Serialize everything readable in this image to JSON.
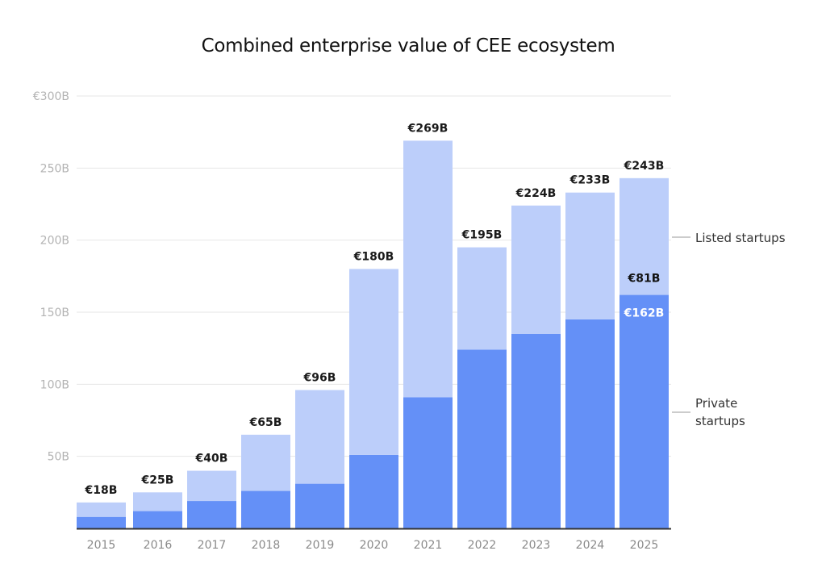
{
  "chart_data": {
    "type": "bar",
    "stacked": true,
    "title": "Combined enterprise value of CEE ecosystem",
    "xlabel": "",
    "ylabel": "",
    "ylim": [
      0,
      300
    ],
    "grid": true,
    "y_ticks": [
      {
        "value": 50,
        "label": "50B"
      },
      {
        "value": 100,
        "label": "100B"
      },
      {
        "value": 150,
        "label": "150B"
      },
      {
        "value": 200,
        "label": "200B"
      },
      {
        "value": 250,
        "label": "250B"
      },
      {
        "value": 300,
        "label": "€300B"
      }
    ],
    "categories": [
      "2015",
      "2016",
      "2017",
      "2018",
      "2019",
      "2020",
      "2021",
      "2022",
      "2023",
      "2024",
      "2025"
    ],
    "series": [
      {
        "name": "Private startups",
        "color": "#6490f7",
        "values": [
          8,
          12,
          19,
          26,
          31,
          51,
          91,
          124,
          135,
          145,
          162
        ]
      },
      {
        "name": "Listed startups",
        "color": "#bccefa",
        "values": [
          10,
          13,
          21,
          39,
          65,
          129,
          178,
          71,
          89,
          88,
          81
        ]
      }
    ],
    "totals": [
      18,
      25,
      40,
      65,
      96,
      180,
      269,
      195,
      224,
      233,
      243
    ],
    "total_labels": [
      "€18B",
      "€25B",
      "€40B",
      "€65B",
      "€96B",
      "€180B",
      "€269B",
      "€195B",
      "€224B",
      "€233B",
      "€243B"
    ],
    "segment_annotations": [
      {
        "category": "2025",
        "series": "Listed startups",
        "label": "€81B"
      },
      {
        "category": "2025",
        "series": "Private startups",
        "label": "€162B"
      }
    ],
    "legend": {
      "placement": "right",
      "entries": [
        {
          "series": "Listed startups",
          "lines": [
            "Listed startups"
          ]
        },
        {
          "series": "Private startups",
          "lines": [
            "Private",
            "startups"
          ]
        }
      ]
    }
  }
}
